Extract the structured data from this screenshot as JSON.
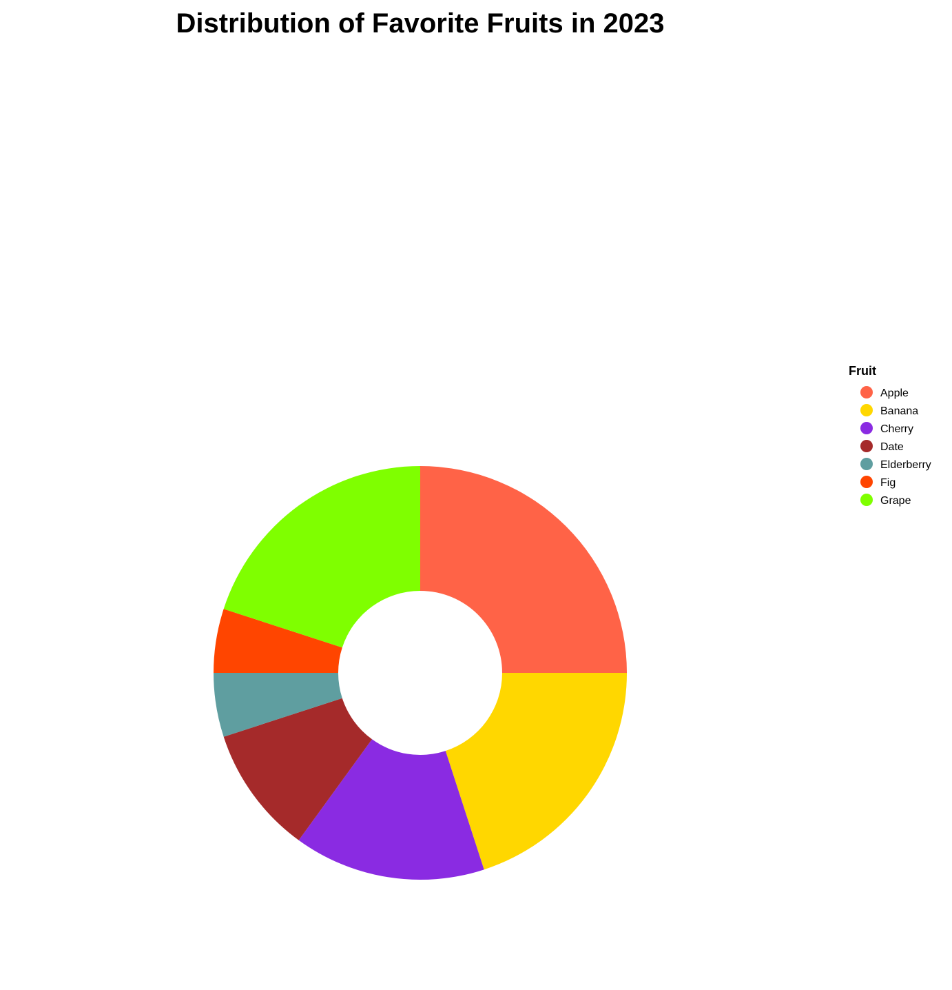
{
  "chart_data": {
    "type": "pie",
    "title": "Distribution of Favorite Fruits in 2023",
    "legend_title": "Fruit",
    "legend_position": "right",
    "donut": true,
    "categories": [
      "Apple",
      "Banana",
      "Cherry",
      "Date",
      "Elderberry",
      "Fig",
      "Grape"
    ],
    "values": [
      25,
      20,
      15,
      10,
      5,
      5,
      20
    ],
    "colors": [
      "#FF6347",
      "#FFD700",
      "#8A2BE2",
      "#A52A2A",
      "#5F9EA0",
      "#FF4500",
      "#7FFF00"
    ]
  }
}
